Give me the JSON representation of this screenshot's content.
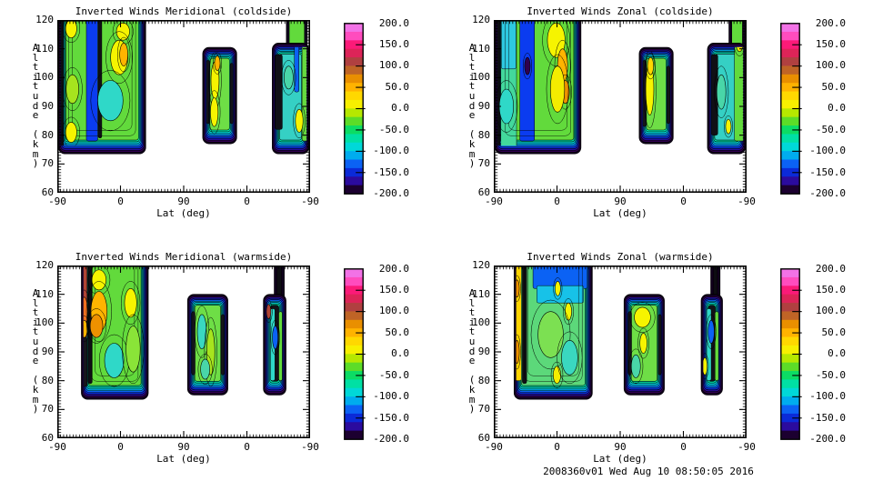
{
  "footer": {
    "text": "2008360v01 Wed Aug 10 08:50:05 2016"
  },
  "axes": {
    "x_label": "Lat (deg)",
    "y_label": "Altitude (km)",
    "x_ticks": [
      "-90",
      "0",
      "90",
      "0",
      "-90"
    ],
    "y_ticks": [
      "120",
      "110",
      "100",
      "90",
      "80",
      "70",
      "60"
    ],
    "y_range": [
      60,
      120
    ]
  },
  "colorbar": {
    "min": -200,
    "max": 200,
    "label_step": 50,
    "labels": [
      "200.0",
      "150.0",
      "100.0",
      "50.0",
      "0.0",
      "-50.0",
      "-100.0",
      "-150.0",
      "-200.0"
    ],
    "band_colors": [
      "#f272e6",
      "#ff4cbe",
      "#fb1a78",
      "#dd2458",
      "#b04040",
      "#bf6426",
      "#e98f00",
      "#ffb300",
      "#ffd800",
      "#f7f000",
      "#b6e800",
      "#5cdc28",
      "#0cdc64",
      "#00e0a4",
      "#00d8d8",
      "#00acee",
      "#0b62f4",
      "#0b2ad8",
      "#2b0b9e",
      "#1c0030"
    ]
  },
  "ring_colors": [
    "#10001c",
    "#30004e",
    "#2b0b9e",
    "#0b2ad8",
    "#0b62f4",
    "#00acee",
    "#00d8d8",
    "#00e0a4"
  ],
  "chart_data": [
    {
      "type": "heatmap",
      "title": "Inverted Winds Meridional (coldside)",
      "xlabel": "Lat (deg)",
      "ylabel": "Altitude (km)",
      "x_tick_values": [
        -90,
        0,
        90,
        0,
        -90
      ],
      "ylim": [
        60,
        120
      ],
      "value_range": [
        -200,
        200
      ],
      "contour_band_size": 20,
      "regions": [
        {
          "x0": 0.0,
          "x1": 0.35,
          "alt_top": 120,
          "alt_bot": 73.5,
          "open_top": true,
          "core": "#62da3c",
          "streaks": [
            {
              "x": 0.004,
              "w": 0.02,
              "t": 120,
              "b": 76,
              "c": "#0d0d12"
            },
            {
              "x": 0.115,
              "w": 0.045,
              "t": 120,
              "b": 78,
              "c": "#0b3cf0"
            },
            {
              "x": 0.162,
              "w": 0.014,
              "t": 120,
              "b": 79,
              "c": "#101016"
            }
          ],
          "spots": [
            {
              "x": 0.055,
              "a": 117,
              "rx": 0.022,
              "ry": 3.2,
              "c": "#f6f400"
            },
            {
              "x": 0.26,
              "a": 116,
              "rx": 0.026,
              "ry": 3,
              "c": "#f6f400"
            },
            {
              "x": 0.245,
              "a": 107,
              "rx": 0.034,
              "ry": 6,
              "c": "#f6f400"
            },
            {
              "x": 0.263,
              "a": 108,
              "rx": 0.016,
              "ry": 4,
              "c": "#ffb400"
            },
            {
              "x": 0.21,
              "a": 92,
              "rx": 0.05,
              "ry": 7,
              "c": "#2fd8c8"
            },
            {
              "x": 0.06,
              "a": 96,
              "rx": 0.025,
              "ry": 5,
              "c": "#a6e41e"
            },
            {
              "x": 0.055,
              "a": 81,
              "rx": 0.022,
              "ry": 3.5,
              "c": "#f6f400"
            }
          ]
        },
        {
          "x0": 0.575,
          "x1": 0.71,
          "alt_top": 110.5,
          "alt_bot": 77,
          "open_top": false,
          "core": "#6ede46",
          "streaks": [
            {
              "x": 0.589,
              "w": 0.013,
              "t": 106,
              "b": 84,
              "c": "#14141a"
            },
            {
              "x": 0.684,
              "w": 0.012,
              "t": 105,
              "b": 84,
              "c": "#14141a"
            }
          ],
          "spots": [
            {
              "x": 0.624,
              "a": 99,
              "rx": 0.016,
              "ry": 6.5,
              "c": "#f6f400"
            },
            {
              "x": 0.621,
              "a": 88,
              "rx": 0.015,
              "ry": 5,
              "c": "#f6f400"
            },
            {
              "x": 0.633,
              "a": 105,
              "rx": 0.011,
              "ry": 2.5,
              "c": "#ffb400"
            }
          ]
        },
        {
          "x0": 0.85,
          "x1": 1.0,
          "alt_top": 112,
          "alt_bot": 73.5,
          "open_top": false,
          "core": "#35d0c4",
          "chimney": {
            "x0": 0.906,
            "x1": 0.989,
            "bot": 108,
            "core": "#62da3c"
          },
          "streaks": [
            {
              "x": 0.862,
              "w": 0.028,
              "t": 108,
              "b": 82,
              "c": "#101016"
            },
            {
              "x": 0.968,
              "w": 0.03,
              "t": 112,
              "b": 78,
              "c": "#66da40"
            },
            {
              "x": 0.938,
              "w": 0.018,
              "t": 116,
              "b": 95,
              "c": "#0b62f4"
            }
          ],
          "spots": [
            {
              "x": 0.957,
              "a": 85,
              "rx": 0.015,
              "ry": 4,
              "c": "#f6f400"
            },
            {
              "x": 0.915,
              "a": 100,
              "rx": 0.018,
              "ry": 4,
              "c": "#49d6a8"
            }
          ]
        }
      ]
    },
    {
      "type": "heatmap",
      "title": "Inverted Winds Zonal (coldside)",
      "xlabel": "Lat (deg)",
      "ylabel": "Altitude (km)",
      "x_tick_values": [
        -90,
        0,
        90,
        0,
        -90
      ],
      "ylim": [
        60,
        120
      ],
      "value_range": [
        -200,
        200
      ],
      "contour_band_size": 20,
      "regions": [
        {
          "x0": 0.0,
          "x1": 0.345,
          "alt_top": 120,
          "alt_bot": 73.5,
          "open_top": true,
          "core": "#62da3c",
          "streaks": [
            {
              "x": 0.004,
              "w": 0.02,
              "t": 120,
              "b": 76,
              "c": "#0d0d12"
            },
            {
              "x": 0.028,
              "w": 0.062,
              "t": 120,
              "b": 74,
              "c": "#43d89c"
            },
            {
              "x": 0.03,
              "w": 0.058,
              "t": 120,
              "b": 103,
              "c": "#2ec8e0"
            },
            {
              "x": 0.103,
              "w": 0.058,
              "t": 120,
              "b": 78,
              "c": "#0b3cf0"
            }
          ],
          "spots": [
            {
              "x": 0.247,
              "a": 113,
              "rx": 0.035,
              "ry": 6,
              "c": "#f6f400"
            },
            {
              "x": 0.272,
              "a": 104,
              "rx": 0.02,
              "ry": 6,
              "c": "#ffb400"
            },
            {
              "x": 0.283,
              "a": 95,
              "rx": 0.016,
              "ry": 4,
              "c": "#ee9100"
            },
            {
              "x": 0.252,
              "a": 96,
              "rx": 0.028,
              "ry": 8,
              "c": "#f4ec00"
            },
            {
              "x": 0.133,
              "a": 104,
              "rx": 0.011,
              "ry": 3,
              "c": "#30004e"
            },
            {
              "x": 0.05,
              "a": 90,
              "rx": 0.028,
              "ry": 6,
              "c": "#2fd8c8"
            }
          ]
        },
        {
          "x0": 0.575,
          "x1": 0.71,
          "alt_top": 110.5,
          "alt_bot": 77,
          "open_top": false,
          "core": "#6ede46",
          "streaks": [
            {
              "x": 0.589,
              "w": 0.013,
              "t": 106,
              "b": 83,
              "c": "#14141a"
            },
            {
              "x": 0.685,
              "w": 0.012,
              "t": 104,
              "b": 84,
              "c": "#14141a"
            }
          ],
          "spots": [
            {
              "x": 0.617,
              "a": 96,
              "rx": 0.016,
              "ry": 9,
              "c": "#f6f400"
            },
            {
              "x": 0.62,
              "a": 104,
              "rx": 0.012,
              "ry": 3,
              "c": "#ffd800"
            }
          ]
        },
        {
          "x0": 0.845,
          "x1": 1.0,
          "alt_top": 112,
          "alt_bot": 73.5,
          "open_top": false,
          "core": "#35d0c4",
          "chimney": {
            "x0": 0.93,
            "x1": 1.0,
            "bot": 108,
            "core": "#62da3c"
          },
          "streaks": [
            {
              "x": 0.86,
              "w": 0.026,
              "t": 108,
              "b": 80,
              "c": "#101016"
            },
            {
              "x": 0.952,
              "w": 0.044,
              "t": 118,
              "b": 78,
              "c": "#62da3c"
            }
          ],
          "spots": [
            {
              "x": 0.9,
              "a": 95,
              "rx": 0.018,
              "ry": 6,
              "c": "#49d6a8"
            },
            {
              "x": 0.928,
              "a": 83,
              "rx": 0.011,
              "ry": 2.5,
              "c": "#f6f400"
            },
            {
              "x": 0.972,
              "a": 112,
              "rx": 0.014,
              "ry": 3,
              "c": "#f4ec00"
            }
          ]
        }
      ]
    },
    {
      "type": "heatmap",
      "title": "Inverted Winds Meridional (warmside)",
      "xlabel": "Lat (deg)",
      "ylabel": "Altitude (km)",
      "x_tick_values": [
        -90,
        0,
        90,
        0,
        -90
      ],
      "ylim": [
        60,
        120
      ],
      "value_range": [
        -200,
        200
      ],
      "contour_band_size": 20,
      "regions": [
        {
          "x0": 0.095,
          "x1": 0.36,
          "alt_top": 120,
          "alt_bot": 73.5,
          "open_top": true,
          "core": "#62da3c",
          "streaks": [
            {
              "x": 0.098,
              "w": 0.02,
              "t": 120,
              "b": 95,
              "c": "#b04434"
            },
            {
              "x": 0.098,
              "w": 0.02,
              "t": 95,
              "b": 78,
              "c": "#16161c"
            },
            {
              "x": 0.122,
              "w": 0.016,
              "t": 120,
              "b": 79,
              "c": "#101016"
            }
          ],
          "spots": [
            {
              "x": 0.107,
              "a": 104,
              "rx": 0.013,
              "ry": 5,
              "c": "#ee7020"
            },
            {
              "x": 0.107,
              "a": 98,
              "rx": 0.012,
              "ry": 3,
              "c": "#ffb400"
            },
            {
              "x": 0.165,
              "a": 115,
              "rx": 0.028,
              "ry": 3.5,
              "c": "#f6f400"
            },
            {
              "x": 0.165,
              "a": 104,
              "rx": 0.032,
              "ry": 7,
              "c": "#ffb400"
            },
            {
              "x": 0.155,
              "a": 99,
              "rx": 0.025,
              "ry": 4,
              "c": "#ee9100"
            },
            {
              "x": 0.29,
              "a": 107,
              "rx": 0.024,
              "ry": 5,
              "c": "#f6f400"
            },
            {
              "x": 0.225,
              "a": 87,
              "rx": 0.038,
              "ry": 6,
              "c": "#2fd8c8"
            },
            {
              "x": 0.3,
              "a": 91,
              "rx": 0.028,
              "ry": 8,
              "c": "#8ae438"
            }
          ]
        },
        {
          "x0": 0.515,
          "x1": 0.675,
          "alt_top": 110,
          "alt_bot": 75,
          "open_top": false,
          "core": "#6ede46",
          "streaks": [
            {
              "x": 0.532,
              "w": 0.013,
              "t": 104,
              "b": 82,
              "c": "#14141a"
            },
            {
              "x": 0.648,
              "w": 0.012,
              "t": 103,
              "b": 82,
              "c": "#14141a"
            }
          ],
          "spots": [
            {
              "x": 0.572,
              "a": 97,
              "rx": 0.018,
              "ry": 6,
              "c": "#3ad8c0"
            },
            {
              "x": 0.607,
              "a": 90,
              "rx": 0.016,
              "ry": 8,
              "c": "#a6e41e"
            },
            {
              "x": 0.585,
              "a": 84,
              "rx": 0.018,
              "ry": 3.5,
              "c": "#49d6a8"
            }
          ]
        },
        {
          "x0": 0.815,
          "x1": 0.905,
          "alt_top": 110,
          "alt_bot": 75,
          "open_top": false,
          "core": "#121218",
          "chimney": {
            "x0": 0.858,
            "x1": 0.898,
            "bot": 105,
            "core": "#0d0d12"
          },
          "streaks": [
            {
              "x": 0.843,
              "w": 0.018,
              "t": 105,
              "b": 80,
              "c": "#2fd8c8"
            },
            {
              "x": 0.876,
              "w": 0.014,
              "t": 104,
              "b": 80,
              "c": "#62da3c"
            }
          ],
          "spots": [
            {
              "x": 0.836,
              "a": 104,
              "rx": 0.009,
              "ry": 2.5,
              "c": "#b04434"
            },
            {
              "x": 0.862,
              "a": 95,
              "rx": 0.011,
              "ry": 4,
              "c": "#0b62f4"
            }
          ]
        }
      ]
    },
    {
      "type": "heatmap",
      "title": "Inverted Winds Zonal (warmside)",
      "xlabel": "Lat (deg)",
      "ylabel": "Altitude (km)",
      "x_tick_values": [
        -90,
        0,
        90,
        0,
        -90
      ],
      "ylim": [
        60,
        120
      ],
      "value_range": [
        -200,
        200
      ],
      "contour_band_size": 20,
      "regions": [
        {
          "x0": 0.08,
          "x1": 0.39,
          "alt_top": 120,
          "alt_bot": 73.5,
          "open_top": true,
          "core": "#5cd87a",
          "streaks": [
            {
              "x": 0.085,
              "w": 0.024,
              "t": 120,
              "b": 80,
              "c": "#ffd400"
            },
            {
              "x": 0.113,
              "w": 0.017,
              "t": 120,
              "b": 79,
              "c": "#101016"
            },
            {
              "x": 0.155,
              "w": 0.215,
              "t": 120,
              "b": 112,
              "c": "#0b62f4"
            },
            {
              "x": 0.17,
              "w": 0.185,
              "t": 113,
              "b": 107,
              "c": "#17c2e8"
            }
          ],
          "spots": [
            {
              "x": 0.092,
              "a": 112,
              "rx": 0.009,
              "ry": 3,
              "c": "#ee9100"
            },
            {
              "x": 0.092,
              "a": 90,
              "rx": 0.009,
              "ry": 4,
              "c": "#ee9100"
            },
            {
              "x": 0.253,
              "a": 112,
              "rx": 0.011,
              "ry": 2.5,
              "c": "#f6f400"
            },
            {
              "x": 0.295,
              "a": 104,
              "rx": 0.013,
              "ry": 3,
              "c": "#f6f400"
            },
            {
              "x": 0.225,
              "a": 96,
              "rx": 0.05,
              "ry": 8,
              "c": "#7ce052"
            },
            {
              "x": 0.25,
              "a": 82,
              "rx": 0.015,
              "ry": 3,
              "c": "#f4ec00"
            },
            {
              "x": 0.3,
              "a": 88,
              "rx": 0.032,
              "ry": 6,
              "c": "#3ad8c0"
            }
          ]
        },
        {
          "x0": 0.515,
          "x1": 0.675,
          "alt_top": 110,
          "alt_bot": 75,
          "open_top": false,
          "core": "#6ede46",
          "streaks": [
            {
              "x": 0.532,
              "w": 0.013,
              "t": 104,
              "b": 82,
              "c": "#14141a"
            },
            {
              "x": 0.65,
              "w": 0.012,
              "t": 103,
              "b": 82,
              "c": "#14141a"
            }
          ],
          "spots": [
            {
              "x": 0.588,
              "a": 102,
              "rx": 0.032,
              "ry": 3.5,
              "c": "#f6f400"
            },
            {
              "x": 0.592,
              "a": 93,
              "rx": 0.014,
              "ry": 3.5,
              "c": "#f6f400"
            },
            {
              "x": 0.562,
              "a": 85,
              "rx": 0.018,
              "ry": 4,
              "c": "#49d6a8"
            }
          ]
        },
        {
          "x0": 0.82,
          "x1": 0.905,
          "alt_top": 110,
          "alt_bot": 75,
          "open_top": false,
          "core": "#121218",
          "chimney": {
            "x0": 0.858,
            "x1": 0.895,
            "bot": 105,
            "core": "#0d0d12"
          },
          "streaks": [
            {
              "x": 0.842,
              "w": 0.018,
              "t": 105,
              "b": 80,
              "c": "#2fd8c8"
            },
            {
              "x": 0.875,
              "w": 0.014,
              "t": 104,
              "b": 80,
              "c": "#62da3c"
            }
          ],
          "spots": [
            {
              "x": 0.835,
              "a": 85,
              "rx": 0.009,
              "ry": 3,
              "c": "#f6f400"
            },
            {
              "x": 0.86,
              "a": 97,
              "rx": 0.012,
              "ry": 4,
              "c": "#0b62f4"
            }
          ]
        }
      ]
    }
  ]
}
